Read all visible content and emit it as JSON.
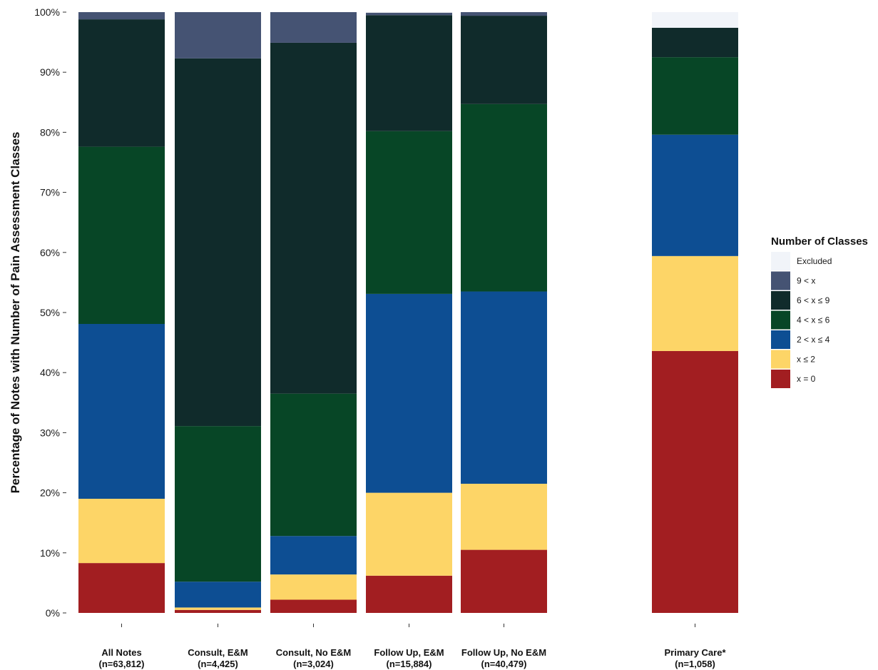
{
  "chart_data": {
    "type": "bar",
    "stacked": true,
    "ylabel": "Percentage of Notes with Number of Pain Assessment Classes",
    "ylim": [
      0,
      100
    ],
    "y_ticks": [
      "0%",
      "10%",
      "20%",
      "30%",
      "40%",
      "50%",
      "60%",
      "70%",
      "80%",
      "90%",
      "100%"
    ],
    "categories": [
      {
        "name": "All Notes",
        "n": "(n=63,812)"
      },
      {
        "name": "Consult, E&M",
        "n": "(n=4,425)"
      },
      {
        "name": "Consult, No E&M",
        "n": "(n=3,024)"
      },
      {
        "name": "Follow Up, E&M",
        "n": "(n=15,884)"
      },
      {
        "name": "Follow Up, No E&M",
        "n": "(n=40,479)"
      },
      {
        "name": "Primary Care*",
        "n": "(n=1,058)"
      }
    ],
    "series": [
      {
        "name": "x = 0",
        "color": "#a21e21",
        "values": [
          8.3,
          0.5,
          2.2,
          6.2,
          10.5,
          43.6
        ]
      },
      {
        "name": "x ≤ 2",
        "color": "#fdd567",
        "values": [
          10.7,
          0.4,
          4.2,
          13.8,
          11.0,
          15.8
        ]
      },
      {
        "name": "2 < x ≤ 4",
        "color": "#0d4e93",
        "values": [
          29.1,
          4.3,
          6.4,
          33.1,
          32.0,
          20.2
        ]
      },
      {
        "name": "4 < x ≤ 6",
        "color": "#074626",
        "values": [
          29.5,
          25.9,
          23.7,
          27.1,
          31.2,
          12.9
        ]
      },
      {
        "name": "6 < x ≤ 9",
        "color": "#102b2b",
        "values": [
          21.2,
          61.2,
          58.4,
          19.3,
          14.7,
          4.9
        ]
      },
      {
        "name": "9 < x",
        "color": "#455373",
        "values": [
          1.2,
          7.7,
          5.1,
          0.4,
          0.6,
          0.0
        ]
      },
      {
        "name": "Excluded",
        "color": "#f1f4f9",
        "values": [
          0.0,
          0.0,
          0.0,
          0.0,
          0.0,
          2.6
        ]
      }
    ],
    "legend": {
      "title": "Number of Classes",
      "placement": "right",
      "order": [
        "Excluded",
        "9 < x",
        "6 < x ≤ 9",
        "4 < x ≤ 6",
        "2 < x ≤ 4",
        "x ≤ 2",
        "x = 0"
      ]
    },
    "grid": false
  }
}
